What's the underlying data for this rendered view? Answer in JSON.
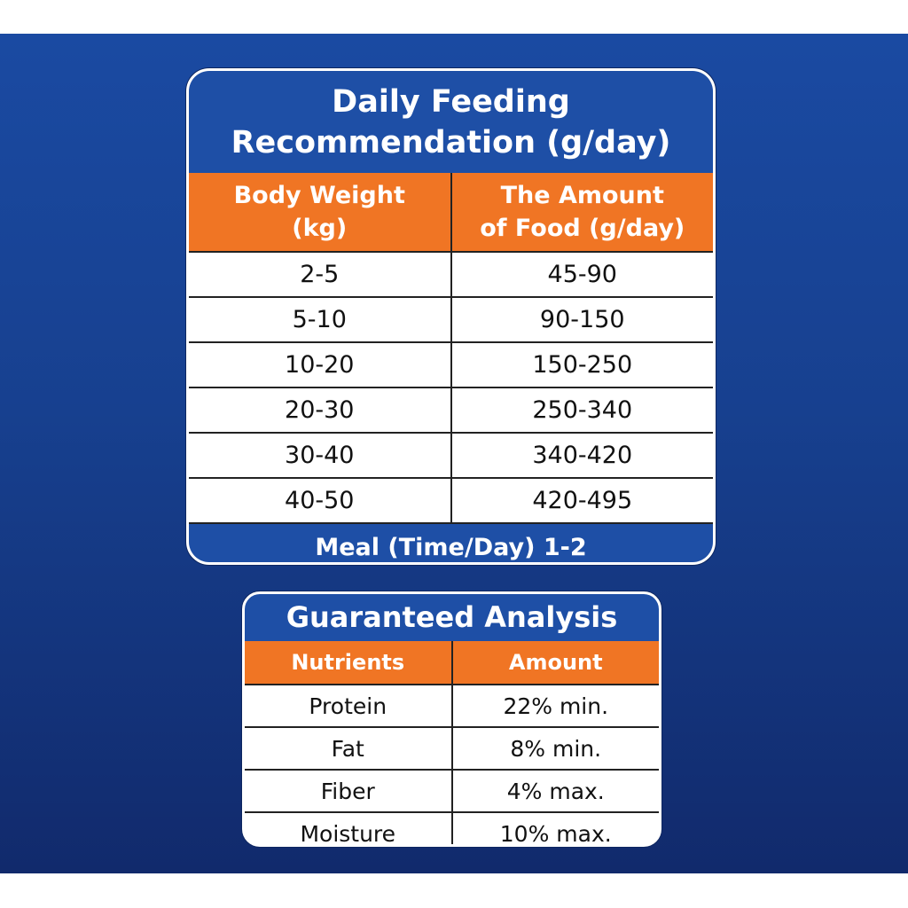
{
  "feeding": {
    "title_line1": "Daily Feeding",
    "title_line2": "Recommendation (g/day)",
    "headers": [
      {
        "line1": "Body Weight",
        "line2": "(kg)"
      },
      {
        "line1": "The Amount",
        "line2": "of Food (g/day)"
      }
    ],
    "rows": [
      [
        "2-5",
        "45-90"
      ],
      [
        "5-10",
        "90-150"
      ],
      [
        "10-20",
        "150-250"
      ],
      [
        "20-30",
        "250-340"
      ],
      [
        "30-40",
        "340-420"
      ],
      [
        "40-50",
        "420-495"
      ]
    ],
    "footer": "Meal (Time/Day) 1-2"
  },
  "analysis": {
    "title": "Guaranteed Analysis",
    "headers": [
      "Nutrients",
      "Amount"
    ],
    "rows": [
      [
        "Protein",
        "22% min."
      ],
      [
        "Fat",
        "8% min."
      ],
      [
        "Fiber",
        "4% max."
      ],
      [
        "Moisture",
        "10% max."
      ]
    ]
  },
  "colors": {
    "blue": "#1e4fa6",
    "orange": "#f07524"
  }
}
